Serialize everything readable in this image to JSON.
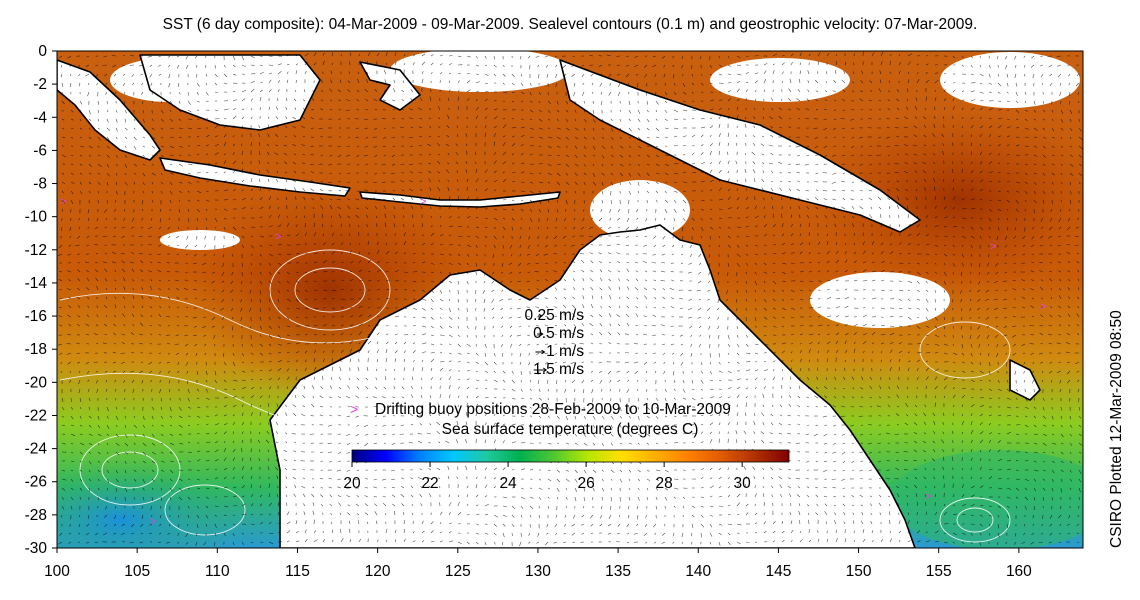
{
  "title": "SST (6 day composite): 04-Mar-2009 - 09-Mar-2009. Sealevel contours (0.1 m) and geostrophic velocity: 07-Mar-2009.",
  "plot_stamp": "CSIRO Plotted 12-Mar-2009 08:50",
  "axes": {
    "lon_range": [
      100,
      164
    ],
    "lat_range": [
      -30,
      0
    ],
    "x_ticks": [
      "100",
      "105",
      "110",
      "115",
      "120",
      "125",
      "130",
      "135",
      "140",
      "145",
      "150",
      "155",
      "160"
    ],
    "y_ticks": [
      "0",
      "-2",
      "-4",
      "-6",
      "-8",
      "-10",
      "-12",
      "-14",
      "-16",
      "-18",
      "-20",
      "-22",
      "-24",
      "-26",
      "-28",
      "-30"
    ]
  },
  "velocity_legend": {
    "items": [
      {
        "label": "0.25 m/s",
        "speed": 0.25
      },
      {
        "label": "0.5 m/s",
        "speed": 0.5
      },
      {
        "label": "1 m/s",
        "speed": 1
      },
      {
        "label": "1.5 m/s",
        "speed": 1.5
      }
    ]
  },
  "buoy_legend": {
    "symbol": ">",
    "label": "Drifting buoy positions 28-Feb-2009 to 10-Mar-2009",
    "color": "#e040e0"
  },
  "colorbar": {
    "title": "Sea surface temperature (degrees C)",
    "range": [
      20,
      31.2
    ],
    "ticks": [
      "20",
      "22",
      "24",
      "26",
      "28",
      "30"
    ],
    "colors": [
      "#00007f",
      "#0000ff",
      "#0080ff",
      "#00c8ff",
      "#20c8a0",
      "#00b050",
      "#50c830",
      "#b4e600",
      "#ffe000",
      "#ffb000",
      "#ff8000",
      "#e05a00",
      "#b03000",
      "#800000"
    ]
  },
  "map_colors": {
    "land": "#ffffff",
    "coast": "#000000",
    "contour": "#ffffff",
    "arrow": "#000000"
  }
}
